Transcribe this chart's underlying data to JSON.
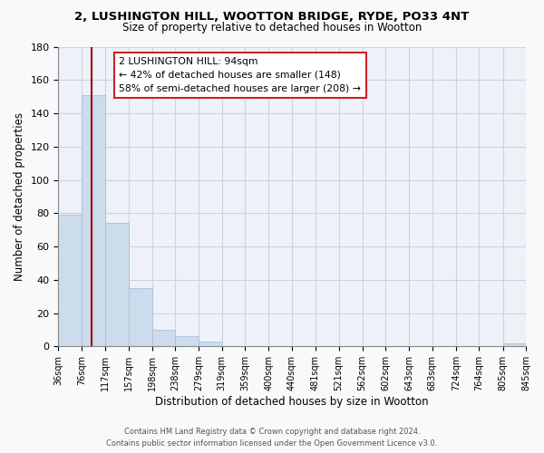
{
  "title": "2, LUSHINGTON HILL, WOOTTON BRIDGE, RYDE, PO33 4NT",
  "subtitle": "Size of property relative to detached houses in Wootton",
  "xlabel": "Distribution of detached houses by size in Wootton",
  "ylabel": "Number of detached properties",
  "bar_edges": [
    36,
    76,
    117,
    157,
    198,
    238,
    279,
    319,
    359,
    400,
    440,
    481,
    521,
    562,
    602,
    643,
    683,
    724,
    764,
    805,
    845
  ],
  "bar_heights": [
    79,
    151,
    74,
    35,
    10,
    6,
    3,
    0,
    0,
    0,
    0,
    0,
    0,
    0,
    0,
    0,
    0,
    0,
    0,
    2
  ],
  "bar_color": "#ccdcec",
  "bar_edgecolor": "#a8c0d8",
  "ylim": [
    0,
    180
  ],
  "yticks": [
    0,
    20,
    40,
    60,
    80,
    100,
    120,
    140,
    160,
    180
  ],
  "vline_x": 94,
  "vline_color": "#990000",
  "annotation_text_line1": "2 LUSHINGTON HILL: 94sqm",
  "annotation_text_line2": "← 42% of detached houses are smaller (148)",
  "annotation_text_line3": "58% of semi-detached houses are larger (208) →",
  "footer_line1": "Contains HM Land Registry data © Crown copyright and database right 2024.",
  "footer_line2": "Contains public sector information licensed under the Open Government Licence v3.0.",
  "background_color": "#f0f4f8",
  "plot_bg_color": "#eef2f8",
  "grid_color": "#c8d4e4"
}
